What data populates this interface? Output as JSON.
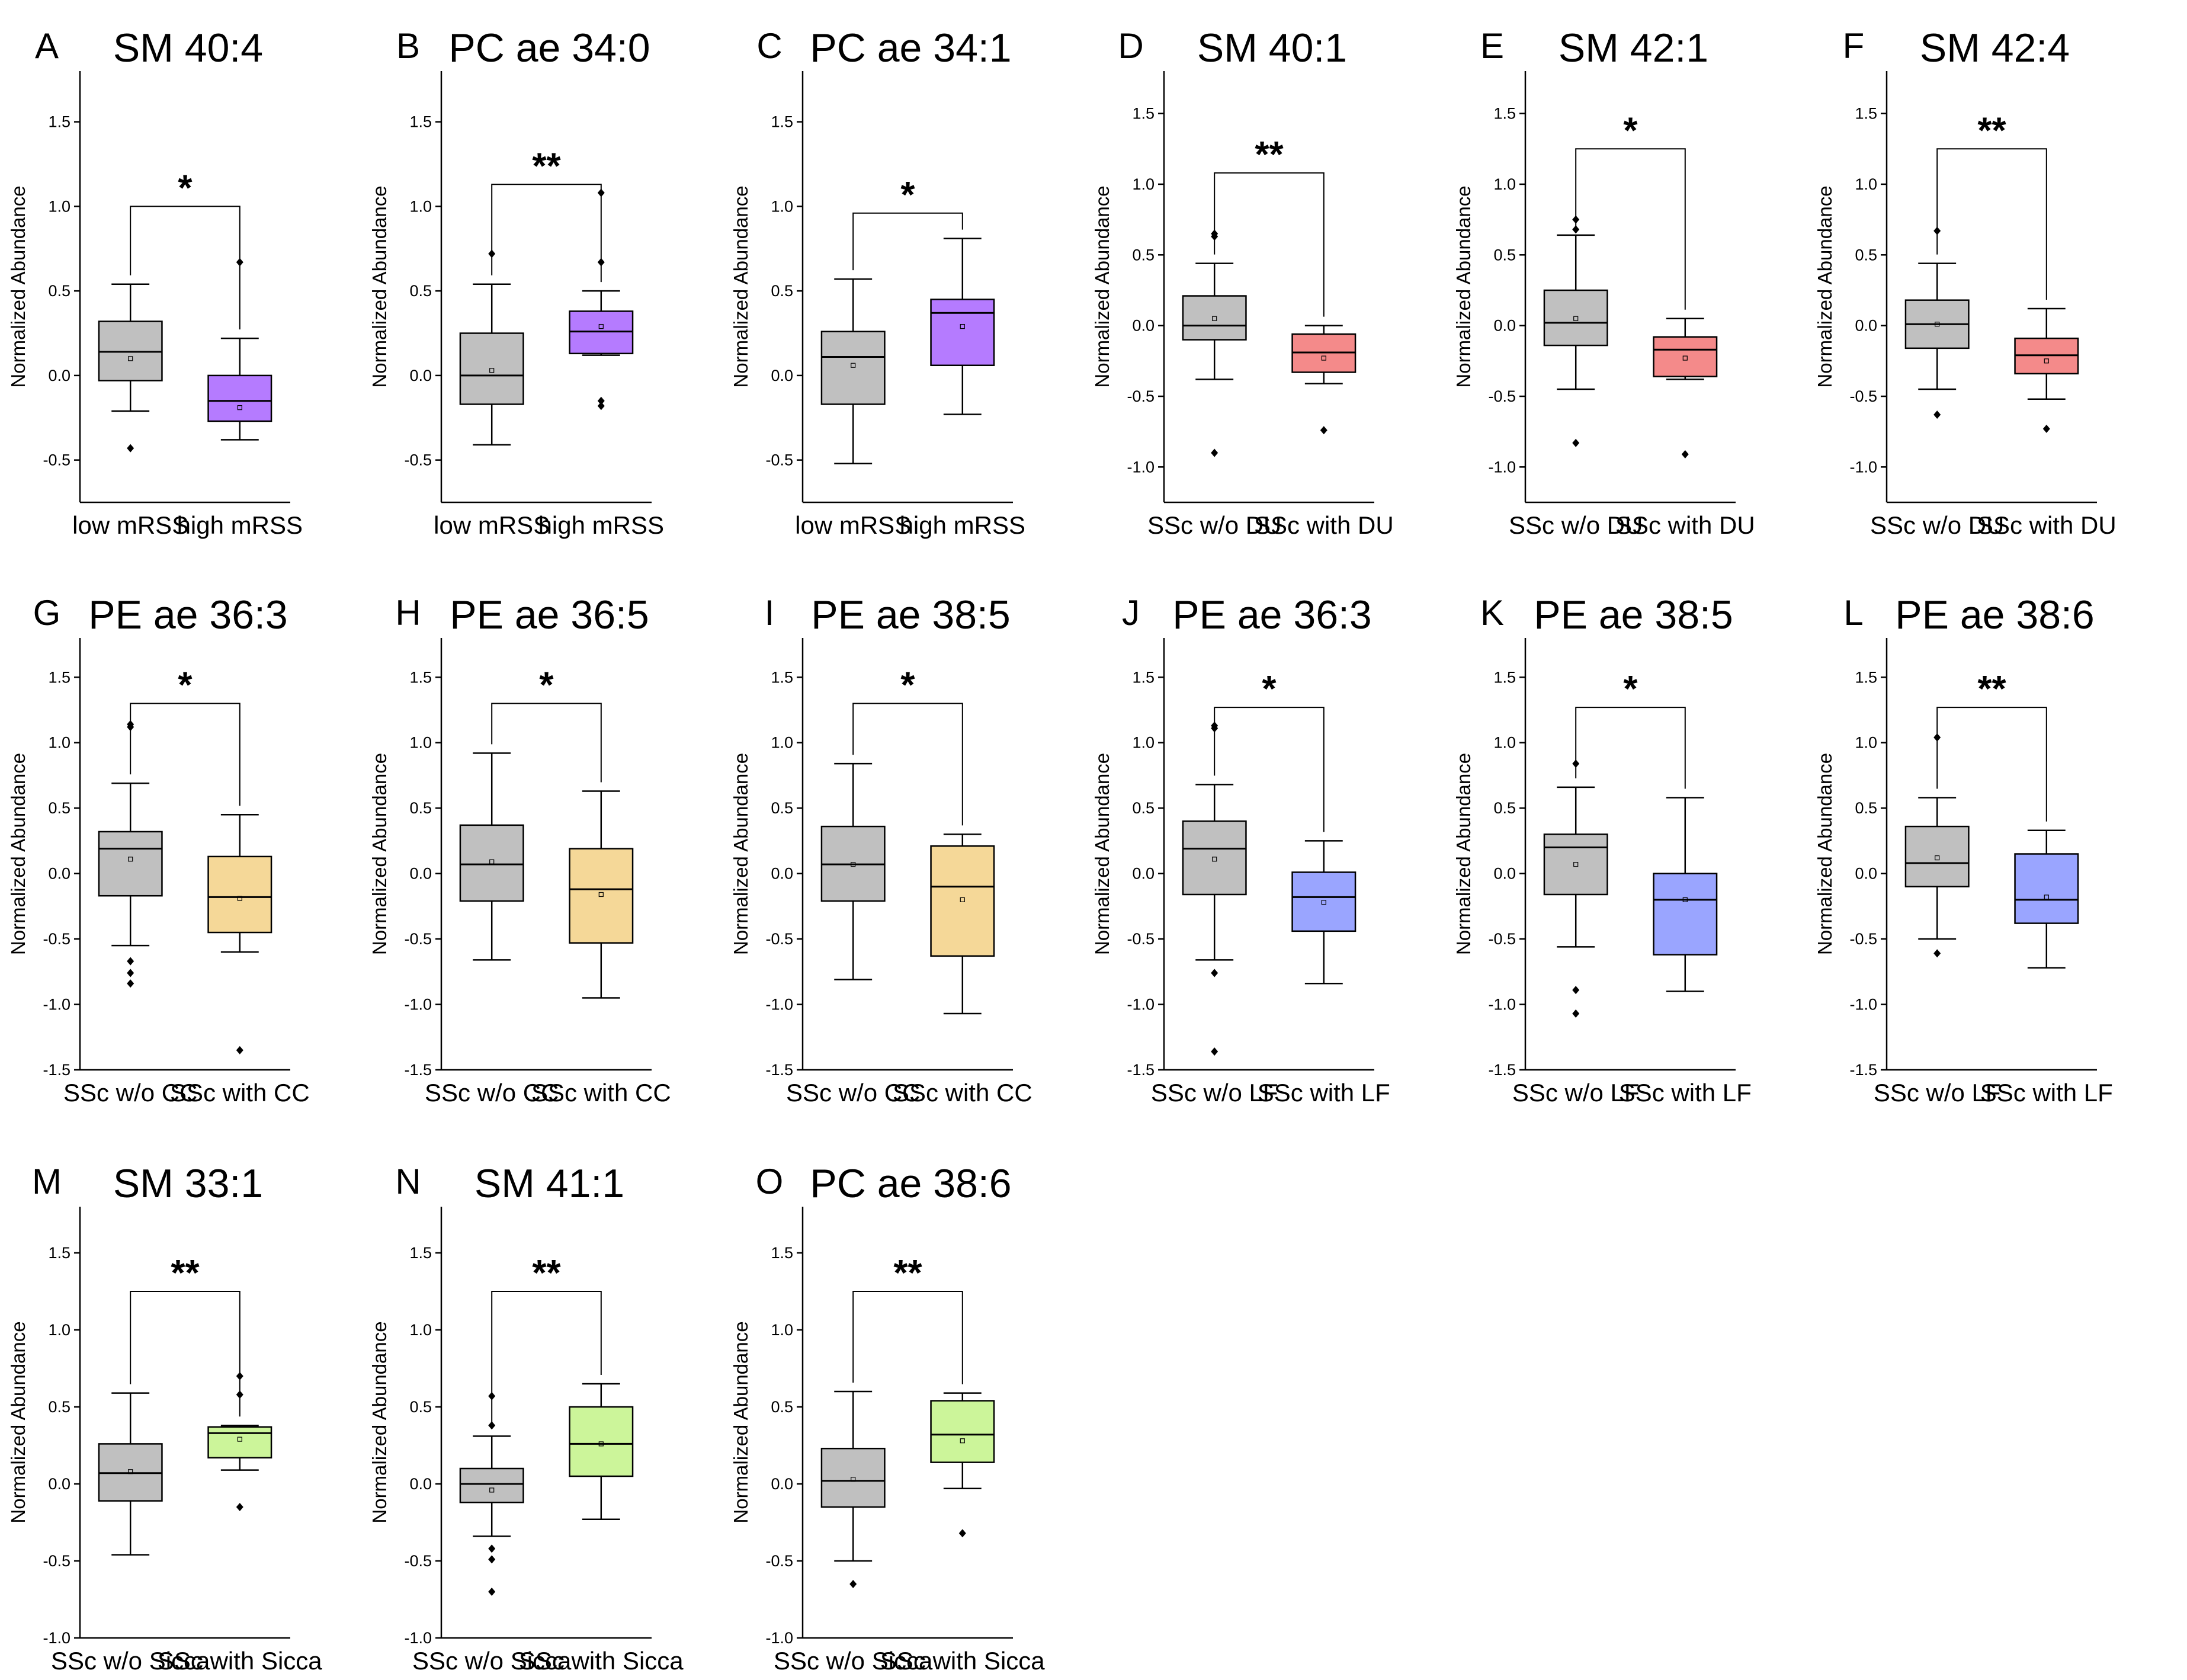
{
  "figure": {
    "ylabel": "Normalized Abundance"
  },
  "chart_data": [
    {
      "letter": "A",
      "title": "SM 40:4",
      "type": "box",
      "ylabel": "Normalized Abundance",
      "ylim": [
        -0.75,
        1.8
      ],
      "yticks": [
        "-0.5",
        "0.0",
        "0.5",
        "1.0",
        "1.5"
      ],
      "yvals": [
        -0.5,
        0,
        0.5,
        1,
        1.5
      ],
      "categories": [
        "low mRSS",
        "high mRSS"
      ],
      "colors": [
        "#c0c0c0",
        "#b57bff"
      ],
      "significance": "*",
      "bracket_y": 1.0,
      "boxes": [
        {
          "q1": -0.03,
          "median": 0.14,
          "q3": 0.32,
          "whisker_low": -0.21,
          "whisker_high": 0.54,
          "mean": 0.1,
          "outliers": [
            -0.43
          ]
        },
        {
          "q1": -0.27,
          "median": -0.15,
          "q3": 0.0,
          "whisker_low": -0.38,
          "whisker_high": 0.22,
          "mean": -0.19,
          "outliers": [
            0.67
          ]
        }
      ]
    },
    {
      "letter": "B",
      "title": "PC ae 34:0",
      "type": "box",
      "ylabel": "Normalized Abundance",
      "ylim": [
        -0.75,
        1.8
      ],
      "yticks": [
        "-0.5",
        "0.0",
        "0.5",
        "1.0",
        "1.5"
      ],
      "yvals": [
        -0.5,
        0,
        0.5,
        1,
        1.5
      ],
      "categories": [
        "low mRSS",
        "high mRSS"
      ],
      "colors": [
        "#c0c0c0",
        "#b57bff"
      ],
      "significance": "**",
      "bracket_y": 1.13,
      "boxes": [
        {
          "q1": -0.17,
          "median": 0.0,
          "q3": 0.25,
          "whisker_low": -0.41,
          "whisker_high": 0.54,
          "mean": 0.03,
          "outliers": [
            0.72
          ]
        },
        {
          "q1": 0.13,
          "median": 0.26,
          "q3": 0.38,
          "whisker_low": 0.12,
          "whisker_high": 0.5,
          "mean": 0.29,
          "outliers": [
            1.08,
            0.67,
            -0.15,
            -0.18
          ]
        }
      ]
    },
    {
      "letter": "C",
      "title": "PC ae 34:1",
      "type": "box",
      "ylabel": "Normalized Abundance",
      "ylim": [
        -0.75,
        1.8
      ],
      "yticks": [
        "-0.5",
        "0.0",
        "0.5",
        "1.0",
        "1.5"
      ],
      "yvals": [
        -0.5,
        0,
        0.5,
        1,
        1.5
      ],
      "categories": [
        "low mRSS",
        "high mRSS"
      ],
      "colors": [
        "#c0c0c0",
        "#b57bff"
      ],
      "significance": "*",
      "bracket_y": 0.96,
      "boxes": [
        {
          "q1": -0.17,
          "median": 0.11,
          "q3": 0.26,
          "whisker_low": -0.52,
          "whisker_high": 0.57,
          "mean": 0.06,
          "outliers": []
        },
        {
          "q1": 0.06,
          "median": 0.37,
          "q3": 0.45,
          "whisker_low": -0.23,
          "whisker_high": 0.81,
          "mean": 0.29,
          "outliers": []
        }
      ]
    },
    {
      "letter": "D",
      "title": "SM 40:1",
      "type": "box",
      "ylabel": "Normalized Abundance",
      "ylim": [
        -1.25,
        1.8
      ],
      "yticks": [
        "-1.0",
        "-0.5",
        "0.0",
        "0.5",
        "1.0",
        "1.5"
      ],
      "yvals": [
        -1,
        -0.5,
        0,
        0.5,
        1,
        1.5
      ],
      "categories": [
        "SSc w/o DU",
        "SSc with DU"
      ],
      "colors": [
        "#c0c0c0",
        "#f48a8a"
      ],
      "significance": "**",
      "bracket_y": 1.08,
      "boxes": [
        {
          "q1": -0.1,
          "median": 0.0,
          "q3": 0.21,
          "whisker_low": -0.38,
          "whisker_high": 0.44,
          "mean": 0.05,
          "outliers": [
            0.65,
            0.63,
            -0.9
          ]
        },
        {
          "q1": -0.33,
          "median": -0.19,
          "q3": -0.06,
          "whisker_low": -0.41,
          "whisker_high": 0.0,
          "mean": -0.23,
          "outliers": [
            -0.74
          ]
        }
      ]
    },
    {
      "letter": "E",
      "title": "SM 42:1",
      "type": "box",
      "ylabel": "Normalized Abundance",
      "ylim": [
        -1.25,
        1.8
      ],
      "yticks": [
        "-1.0",
        "-0.5",
        "0.0",
        "0.5",
        "1.0",
        "1.5"
      ],
      "yvals": [
        -1,
        -0.5,
        0,
        0.5,
        1,
        1.5
      ],
      "categories": [
        "SSc w/o DU",
        "SSc with DU"
      ],
      "colors": [
        "#c0c0c0",
        "#f48a8a"
      ],
      "significance": "*",
      "bracket_y": 1.25,
      "boxes": [
        {
          "q1": -0.14,
          "median": 0.02,
          "q3": 0.25,
          "whisker_low": -0.45,
          "whisker_high": 0.64,
          "mean": 0.05,
          "outliers": [
            0.75,
            0.68,
            -0.83
          ]
        },
        {
          "q1": -0.36,
          "median": -0.17,
          "q3": -0.08,
          "whisker_low": -0.38,
          "whisker_high": 0.05,
          "mean": -0.23,
          "outliers": [
            -0.91
          ]
        }
      ]
    },
    {
      "letter": "F",
      "title": "SM 42:4",
      "type": "box",
      "ylabel": "Normalized Abundance",
      "ylim": [
        -1.25,
        1.8
      ],
      "yticks": [
        "-1.0",
        "-0.5",
        "0.0",
        "0.5",
        "1.0",
        "1.5"
      ],
      "yvals": [
        -1,
        -0.5,
        0,
        0.5,
        1,
        1.5
      ],
      "categories": [
        "SSc w/o DU",
        "SSc with DU"
      ],
      "colors": [
        "#c0c0c0",
        "#f48a8a"
      ],
      "significance": "**",
      "bracket_y": 1.25,
      "boxes": [
        {
          "q1": -0.16,
          "median": 0.01,
          "q3": 0.18,
          "whisker_low": -0.45,
          "whisker_high": 0.44,
          "mean": 0.01,
          "outliers": [
            0.67,
            -0.63
          ]
        },
        {
          "q1": -0.34,
          "median": -0.21,
          "q3": -0.09,
          "whisker_low": -0.52,
          "whisker_high": 0.12,
          "mean": -0.25,
          "outliers": [
            -0.73
          ]
        }
      ]
    },
    {
      "letter": "G",
      "title": "PE ae 36:3",
      "type": "box",
      "ylabel": "Normalized Abundance",
      "ylim": [
        -1.5,
        1.8
      ],
      "yticks": [
        "-1.5",
        "-1.0",
        "-0.5",
        "0.0",
        "0.5",
        "1.0",
        "1.5"
      ],
      "yvals": [
        -1.5,
        -1,
        -0.5,
        0,
        0.5,
        1,
        1.5
      ],
      "categories": [
        "SSc w/o CC",
        "SSc with CC"
      ],
      "colors": [
        "#c0c0c0",
        "#f5d898"
      ],
      "significance": "*",
      "bracket_y": 1.3,
      "boxes": [
        {
          "q1": -0.17,
          "median": 0.19,
          "q3": 0.32,
          "whisker_low": -0.55,
          "whisker_high": 0.69,
          "mean": 0.11,
          "outliers": [
            1.14,
            1.12,
            -0.67,
            -0.76,
            -0.84
          ]
        },
        {
          "q1": -0.45,
          "median": -0.18,
          "q3": 0.13,
          "whisker_low": -0.6,
          "whisker_high": 0.45,
          "mean": -0.19,
          "outliers": [
            -1.35
          ]
        }
      ]
    },
    {
      "letter": "H",
      "title": "PE ae 36:5",
      "type": "box",
      "ylabel": "Normalized Abundance",
      "ylim": [
        -1.5,
        1.8
      ],
      "yticks": [
        "-1.5",
        "-1.0",
        "-0.5",
        "0.0",
        "0.5",
        "1.0",
        "1.5"
      ],
      "yvals": [
        -1.5,
        -1,
        -0.5,
        0,
        0.5,
        1,
        1.5
      ],
      "categories": [
        "SSc w/o CC",
        "SSc with CC"
      ],
      "colors": [
        "#c0c0c0",
        "#f5d898"
      ],
      "significance": "*",
      "bracket_y": 1.3,
      "boxes": [
        {
          "q1": -0.21,
          "median": 0.07,
          "q3": 0.37,
          "whisker_low": -0.66,
          "whisker_high": 0.92,
          "mean": 0.09,
          "outliers": []
        },
        {
          "q1": -0.53,
          "median": -0.12,
          "q3": 0.19,
          "whisker_low": -0.95,
          "whisker_high": 0.63,
          "mean": -0.16,
          "outliers": []
        }
      ]
    },
    {
      "letter": "I",
      "title": "PE ae 38:5",
      "type": "box",
      "ylabel": "Normalized Abundance",
      "ylim": [
        -1.5,
        1.8
      ],
      "yticks": [
        "-1.5",
        "-1.0",
        "-0.5",
        "0.0",
        "0.5",
        "1.0",
        "1.5"
      ],
      "yvals": [
        -1.5,
        -1,
        -0.5,
        0,
        0.5,
        1,
        1.5
      ],
      "categories": [
        "SSc w/o CC",
        "SSc with CC"
      ],
      "colors": [
        "#c0c0c0",
        "#f5d898"
      ],
      "significance": "*",
      "bracket_y": 1.3,
      "boxes": [
        {
          "q1": -0.21,
          "median": 0.07,
          "q3": 0.36,
          "whisker_low": -0.81,
          "whisker_high": 0.84,
          "mean": 0.07,
          "outliers": []
        },
        {
          "q1": -0.63,
          "median": -0.1,
          "q3": 0.21,
          "whisker_low": -1.07,
          "whisker_high": 0.3,
          "mean": -0.2,
          "outliers": []
        }
      ]
    },
    {
      "letter": "J",
      "title": "PE ae 36:3",
      "type": "box",
      "ylabel": "Normalized Abundance",
      "ylim": [
        -1.5,
        1.8
      ],
      "yticks": [
        "-1.5",
        "-1.0",
        "-0.5",
        "0.0",
        "0.5",
        "1.0",
        "1.5"
      ],
      "yvals": [
        -1.5,
        -1,
        -0.5,
        0,
        0.5,
        1,
        1.5
      ],
      "categories": [
        "SSc w/o LF",
        "SSc with LF"
      ],
      "colors": [
        "#c0c0c0",
        "#9aa5ff"
      ],
      "significance": "*",
      "bracket_y": 1.27,
      "boxes": [
        {
          "q1": -0.16,
          "median": 0.19,
          "q3": 0.4,
          "whisker_low": -0.66,
          "whisker_high": 0.68,
          "mean": 0.11,
          "outliers": [
            1.13,
            1.11,
            -0.76,
            -1.36
          ]
        },
        {
          "q1": -0.44,
          "median": -0.18,
          "q3": 0.01,
          "whisker_low": -0.84,
          "whisker_high": 0.25,
          "mean": -0.22,
          "outliers": []
        }
      ]
    },
    {
      "letter": "K",
      "title": "PE ae 38:5",
      "type": "box",
      "ylabel": "Normalized Abundance",
      "ylim": [
        -1.5,
        1.8
      ],
      "yticks": [
        "-1.5",
        "-1.0",
        "-0.5",
        "0.0",
        "0.5",
        "1.0",
        "1.5"
      ],
      "yvals": [
        -1.5,
        -1,
        -0.5,
        0,
        0.5,
        1,
        1.5
      ],
      "categories": [
        "SSc w/o LF",
        "SSc with LF"
      ],
      "colors": [
        "#c0c0c0",
        "#9aa5ff"
      ],
      "significance": "*",
      "bracket_y": 1.27,
      "boxes": [
        {
          "q1": -0.16,
          "median": 0.2,
          "q3": 0.3,
          "whisker_low": -0.56,
          "whisker_high": 0.66,
          "mean": 0.07,
          "outliers": [
            0.84,
            -0.89,
            -1.07
          ]
        },
        {
          "q1": -0.62,
          "median": -0.2,
          "q3": 0.0,
          "whisker_low": -0.9,
          "whisker_high": 0.58,
          "mean": -0.2,
          "outliers": []
        }
      ]
    },
    {
      "letter": "L",
      "title": "PE ae 38:6",
      "type": "box",
      "ylabel": "Normalized Abundance",
      "ylim": [
        -1.5,
        1.8
      ],
      "yticks": [
        "-1.5",
        "-1.0",
        "-0.5",
        "0.0",
        "0.5",
        "1.0",
        "1.5"
      ],
      "yvals": [
        -1.5,
        -1,
        -0.5,
        0,
        0.5,
        1,
        1.5
      ],
      "categories": [
        "SSc w/o LF",
        "SSc with LF"
      ],
      "colors": [
        "#c0c0c0",
        "#9aa5ff"
      ],
      "significance": "**",
      "bracket_y": 1.27,
      "boxes": [
        {
          "q1": -0.1,
          "median": 0.08,
          "q3": 0.36,
          "whisker_low": -0.5,
          "whisker_high": 0.58,
          "mean": 0.12,
          "outliers": [
            1.04,
            -0.61
          ]
        },
        {
          "q1": -0.38,
          "median": -0.2,
          "q3": 0.15,
          "whisker_low": -0.72,
          "whisker_high": 0.33,
          "mean": -0.18,
          "outliers": []
        }
      ]
    },
    {
      "letter": "M",
      "title": "SM 33:1",
      "type": "box",
      "ylabel": "Normalized Abundance",
      "ylim": [
        -1.0,
        1.8
      ],
      "yticks": [
        "-1.0",
        "-0.5",
        "0.0",
        "0.5",
        "1.0",
        "1.5"
      ],
      "yvals": [
        -1,
        -0.5,
        0,
        0.5,
        1,
        1.5
      ],
      "categories": [
        "SSc w/o Sicca",
        "SSc with Sicca"
      ],
      "colors": [
        "#c0c0c0",
        "#ccf59a"
      ],
      "significance": "**",
      "bracket_y": 1.25,
      "boxes": [
        {
          "q1": -0.11,
          "median": 0.07,
          "q3": 0.26,
          "whisker_low": -0.46,
          "whisker_high": 0.59,
          "mean": 0.08,
          "outliers": []
        },
        {
          "q1": 0.17,
          "median": 0.33,
          "q3": 0.37,
          "whisker_low": 0.09,
          "whisker_high": 0.38,
          "mean": 0.29,
          "outliers": [
            0.7,
            0.58,
            -0.15
          ]
        }
      ]
    },
    {
      "letter": "N",
      "title": "SM 41:1",
      "type": "box",
      "ylabel": "Normalized Abundance",
      "ylim": [
        -1.0,
        1.8
      ],
      "yticks": [
        "-1.0",
        "-0.5",
        "0.0",
        "0.5",
        "1.0",
        "1.5"
      ],
      "yvals": [
        -1,
        -0.5,
        0,
        0.5,
        1,
        1.5
      ],
      "categories": [
        "SSc w/o Sicca",
        "SSc with Sicca"
      ],
      "colors": [
        "#c0c0c0",
        "#ccf59a"
      ],
      "significance": "**",
      "bracket_y": 1.25,
      "boxes": [
        {
          "q1": -0.12,
          "median": 0.0,
          "q3": 0.1,
          "whisker_low": -0.34,
          "whisker_high": 0.31,
          "mean": -0.04,
          "outliers": [
            0.57,
            0.38,
            -0.42,
            -0.49,
            -0.7
          ]
        },
        {
          "q1": 0.05,
          "median": 0.26,
          "q3": 0.5,
          "whisker_low": -0.23,
          "whisker_high": 0.65,
          "mean": 0.26,
          "outliers": []
        }
      ]
    },
    {
      "letter": "O",
      "title": "PC ae 38:6",
      "type": "box",
      "ylabel": "Normalized Abundance",
      "ylim": [
        -1.0,
        1.8
      ],
      "yticks": [
        "-1.0",
        "-0.5",
        "0.0",
        "0.5",
        "1.0",
        "1.5"
      ],
      "yvals": [
        -1,
        -0.5,
        0,
        0.5,
        1,
        1.5
      ],
      "categories": [
        "SSc w/o Sicca",
        "SSc with Sicca"
      ],
      "colors": [
        "#c0c0c0",
        "#ccf59a"
      ],
      "significance": "**",
      "bracket_y": 1.25,
      "boxes": [
        {
          "q1": -0.15,
          "median": 0.02,
          "q3": 0.23,
          "whisker_low": -0.5,
          "whisker_high": 0.6,
          "mean": 0.03,
          "outliers": [
            -0.65
          ]
        },
        {
          "q1": 0.14,
          "median": 0.32,
          "q3": 0.54,
          "whisker_low": -0.03,
          "whisker_high": 0.59,
          "mean": 0.28,
          "outliers": [
            -0.32
          ]
        }
      ]
    }
  ]
}
